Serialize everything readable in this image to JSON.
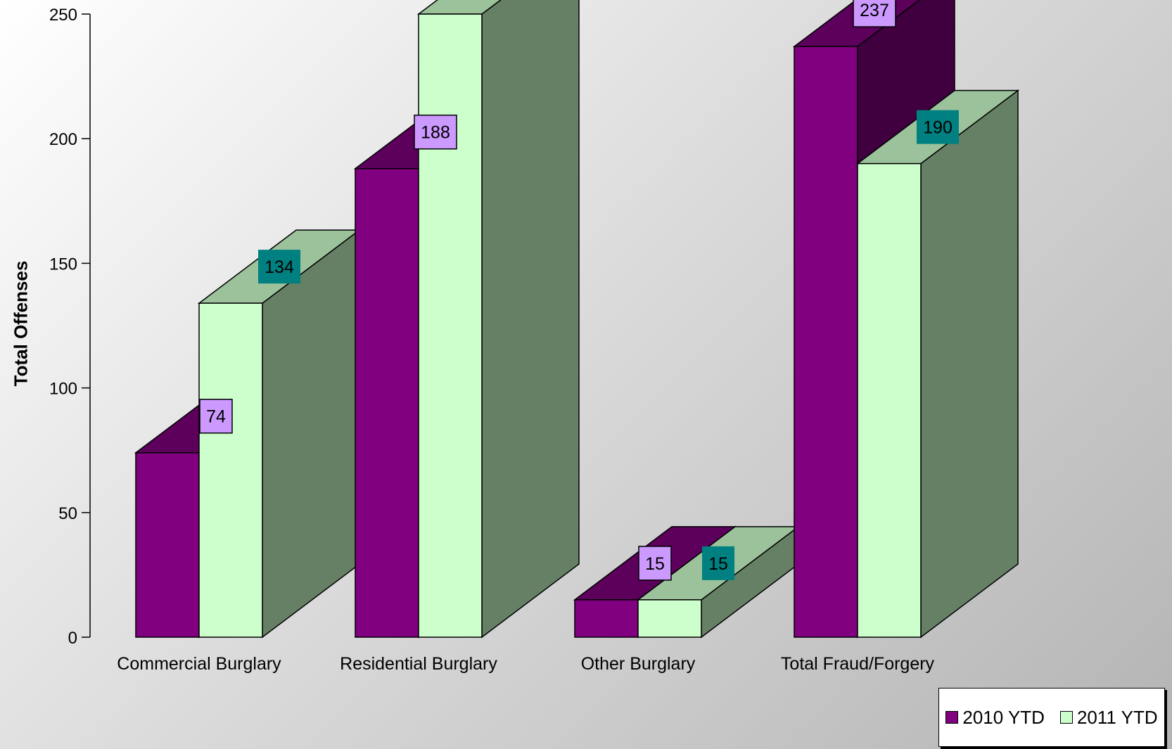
{
  "chart_data": {
    "type": "bar",
    "style": "3d-clustered",
    "categories": [
      "Commercial Burglary",
      "Residential Burglary",
      "Other Burglary",
      "Total Fraud/Forgery"
    ],
    "series": [
      {
        "name": "2010 YTD",
        "values": [
          74,
          188,
          15,
          237
        ],
        "color": "#800080",
        "label_bg": "#cc99ff"
      },
      {
        "name": "2011 YTD",
        "values": [
          134,
          250,
          15,
          190
        ],
        "color": "#ccffcc",
        "label_bg": "#008080"
      }
    ],
    "data_labels": [
      [
        "74",
        "188",
        "15",
        "237"
      ],
      [
        "134",
        "",
        "15",
        "190"
      ]
    ],
    "ylabel": "Total Offenses",
    "ylim": [
      0,
      250
    ],
    "yticks": [
      0,
      50,
      100,
      150,
      200,
      250
    ],
    "ytick_labels": [
      "0",
      "50",
      "100",
      "150",
      "200",
      "250"
    ],
    "legend_position": "bottom-right"
  }
}
